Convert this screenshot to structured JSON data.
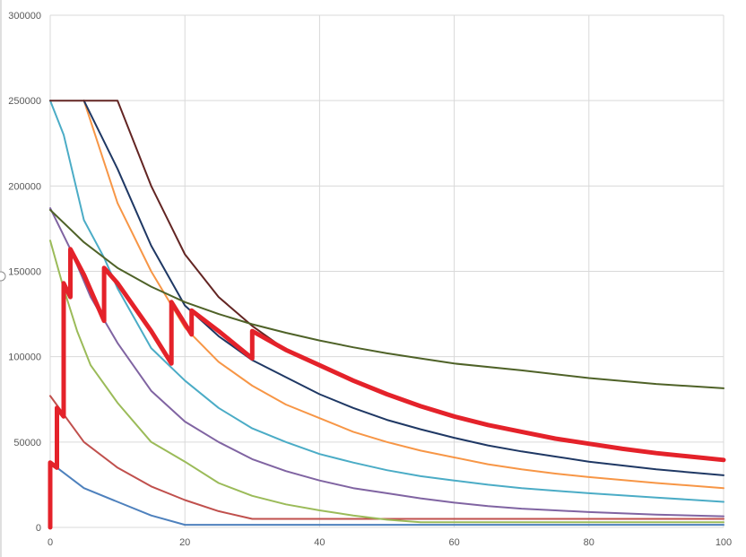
{
  "chart_data": {
    "type": "line",
    "title": "",
    "xlabel": "",
    "ylabel": "",
    "xlim": [
      0,
      100
    ],
    "ylim": [
      0,
      300000
    ],
    "x_ticks": [
      0,
      20,
      40,
      60,
      80,
      100
    ],
    "y_ticks": [
      0,
      50000,
      100000,
      150000,
      200000,
      250000,
      300000
    ],
    "grid": true,
    "legend": "none",
    "series": [
      {
        "color": "#4e81bd",
        "width": 2,
        "points": [
          [
            0,
            38000
          ],
          [
            5,
            23000
          ],
          [
            10,
            15000
          ],
          [
            15,
            7000
          ],
          [
            20,
            1500
          ],
          [
            30,
            1500
          ],
          [
            50,
            1500
          ],
          [
            100,
            1500
          ]
        ]
      },
      {
        "color": "#c0504d",
        "width": 2,
        "points": [
          [
            0,
            77000
          ],
          [
            5,
            50000
          ],
          [
            10,
            35000
          ],
          [
            15,
            24000
          ],
          [
            20,
            16000
          ],
          [
            25,
            9500
          ],
          [
            30,
            5000
          ],
          [
            50,
            5000
          ],
          [
            100,
            5000
          ]
        ]
      },
      {
        "color": "#9bbb59",
        "width": 2,
        "points": [
          [
            0,
            168000
          ],
          [
            2,
            140000
          ],
          [
            4,
            115000
          ],
          [
            6,
            95000
          ],
          [
            10,
            73000
          ],
          [
            15,
            50000
          ],
          [
            20,
            38500
          ],
          [
            25,
            26000
          ],
          [
            30,
            18500
          ],
          [
            35,
            13500
          ],
          [
            40,
            10000
          ],
          [
            45,
            7000
          ],
          [
            50,
            4500
          ],
          [
            55,
            3000
          ],
          [
            100,
            3000
          ]
        ]
      },
      {
        "color": "#8064a2",
        "width": 2,
        "points": [
          [
            0,
            187000
          ],
          [
            3,
            163000
          ],
          [
            6,
            135000
          ],
          [
            10,
            108000
          ],
          [
            15,
            80000
          ],
          [
            20,
            62000
          ],
          [
            25,
            50000
          ],
          [
            30,
            40000
          ],
          [
            35,
            33000
          ],
          [
            40,
            27500
          ],
          [
            45,
            23000
          ],
          [
            50,
            20000
          ],
          [
            55,
            17000
          ],
          [
            60,
            14500
          ],
          [
            65,
            12500
          ],
          [
            70,
            11000
          ],
          [
            75,
            10000
          ],
          [
            80,
            9000
          ],
          [
            90,
            7500
          ],
          [
            100,
            6500
          ]
        ]
      },
      {
        "color": "#4bacc6",
        "width": 2,
        "points": [
          [
            0,
            250000
          ],
          [
            2,
            230000
          ],
          [
            5,
            180000
          ],
          [
            8,
            158000
          ],
          [
            10,
            140000
          ],
          [
            15,
            105000
          ],
          [
            20,
            86000
          ],
          [
            25,
            70000
          ],
          [
            30,
            58000
          ],
          [
            35,
            50000
          ],
          [
            40,
            43000
          ],
          [
            45,
            38000
          ],
          [
            50,
            33500
          ],
          [
            55,
            30000
          ],
          [
            60,
            27500
          ],
          [
            65,
            25000
          ],
          [
            70,
            23000
          ],
          [
            75,
            21500
          ],
          [
            80,
            20000
          ],
          [
            90,
            17500
          ],
          [
            100,
            15000
          ]
        ]
      },
      {
        "color": "#f79646",
        "width": 2,
        "points": [
          [
            5,
            250000
          ],
          [
            10,
            190000
          ],
          [
            15,
            150000
          ],
          [
            20,
            117000
          ],
          [
            25,
            97000
          ],
          [
            30,
            83000
          ],
          [
            35,
            72000
          ],
          [
            40,
            64000
          ],
          [
            45,
            56000
          ],
          [
            50,
            50000
          ],
          [
            55,
            45000
          ],
          [
            60,
            41000
          ],
          [
            65,
            37000
          ],
          [
            70,
            34000
          ],
          [
            75,
            31500
          ],
          [
            80,
            29500
          ],
          [
            90,
            26000
          ],
          [
            100,
            23000
          ]
        ]
      },
      {
        "color": "#1f3864",
        "width": 2,
        "points": [
          [
            5,
            250000
          ],
          [
            10,
            210000
          ],
          [
            15,
            165000
          ],
          [
            20,
            130000
          ],
          [
            25,
            112000
          ],
          [
            30,
            98000
          ],
          [
            35,
            88000
          ],
          [
            40,
            78000
          ],
          [
            45,
            70000
          ],
          [
            50,
            63000
          ],
          [
            55,
            57500
          ],
          [
            60,
            52500
          ],
          [
            65,
            48000
          ],
          [
            70,
            44500
          ],
          [
            75,
            41500
          ],
          [
            80,
            38500
          ],
          [
            90,
            34000
          ],
          [
            100,
            30500
          ]
        ]
      },
      {
        "color": "#632523",
        "width": 2,
        "points": [
          [
            0,
            250000
          ],
          [
            10,
            250000
          ],
          [
            15,
            200000
          ],
          [
            20,
            160000
          ],
          [
            25,
            135000
          ],
          [
            30,
            118000
          ],
          [
            35,
            104000
          ]
        ]
      },
      {
        "color": "#4f6228",
        "width": 2,
        "points": [
          [
            0,
            186000
          ],
          [
            5,
            167000
          ],
          [
            10,
            152000
          ],
          [
            15,
            141000
          ],
          [
            20,
            132000
          ],
          [
            25,
            125000
          ],
          [
            30,
            119000
          ],
          [
            35,
            114000
          ],
          [
            40,
            109500
          ],
          [
            45,
            105500
          ],
          [
            50,
            102000
          ],
          [
            55,
            99000
          ],
          [
            60,
            96000
          ],
          [
            70,
            92000
          ],
          [
            80,
            87500
          ],
          [
            90,
            84000
          ],
          [
            100,
            81500
          ]
        ]
      },
      {
        "color": "#e4222a",
        "width": 5,
        "points": [
          [
            0,
            0
          ],
          [
            0,
            38000
          ],
          [
            1,
            35000
          ],
          [
            1,
            70000
          ],
          [
            2,
            65000
          ],
          [
            2,
            143000
          ],
          [
            3,
            135000
          ],
          [
            3,
            163000
          ],
          [
            5,
            148000
          ],
          [
            8,
            121000
          ],
          [
            8,
            152000
          ],
          [
            10,
            143000
          ],
          [
            15,
            115000
          ],
          [
            18,
            96000
          ],
          [
            18,
            132000
          ],
          [
            21,
            113000
          ],
          [
            21,
            127000
          ],
          [
            25,
            115000
          ],
          [
            30,
            99000
          ],
          [
            30,
            115000
          ],
          [
            35,
            104000
          ],
          [
            40,
            95000
          ],
          [
            45,
            86000
          ],
          [
            50,
            78000
          ],
          [
            55,
            71000
          ],
          [
            60,
            65000
          ],
          [
            65,
            60000
          ],
          [
            70,
            56000
          ],
          [
            75,
            52000
          ],
          [
            80,
            49000
          ],
          [
            85,
            46000
          ],
          [
            90,
            43500
          ],
          [
            95,
            41500
          ],
          [
            100,
            39500
          ]
        ]
      }
    ]
  }
}
